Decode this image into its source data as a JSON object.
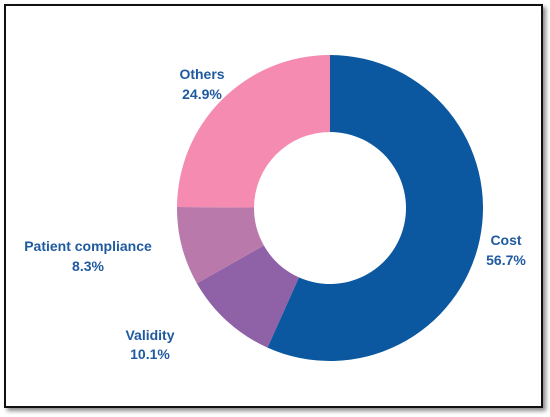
{
  "chart_data": {
    "type": "pie",
    "style": "donut",
    "title": "",
    "categories": [
      "Cost",
      "Validity",
      "Patient compliance",
      "Others"
    ],
    "values": [
      56.7,
      10.1,
      8.3,
      24.9
    ],
    "value_labels": [
      "56.7%",
      "10.1%",
      "8.3%",
      "24.9%"
    ],
    "colors": [
      "#0b58a0",
      "#8f62a7",
      "#b97aab",
      "#f58bb0"
    ],
    "label_color": "#1f5aa0",
    "start_angle_deg": 0,
    "direction": "clockwise",
    "legend": "none"
  }
}
